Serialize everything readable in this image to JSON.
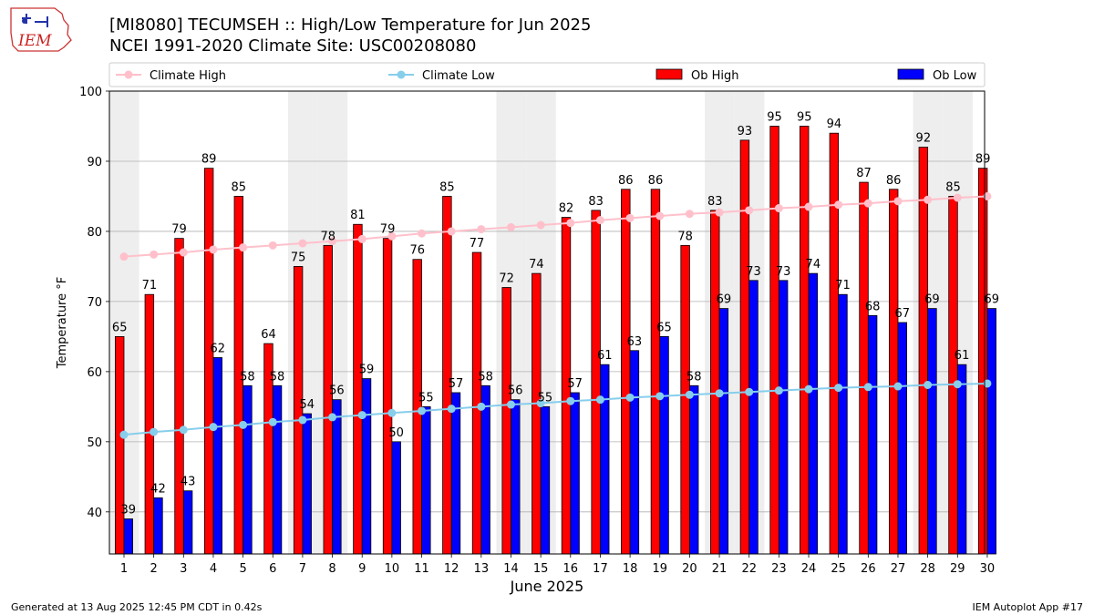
{
  "title": {
    "line1": "[MI8080] TECUMSEH :: High/Low Temperature for Jun 2025",
    "line2": "NCEI 1991-2020 Climate Site: USC00208080"
  },
  "logo_text": "IEM",
  "footer": {
    "left": "Generated at 13 Aug 2025 12:45 PM CDT in 0.42s",
    "right": "IEM Autoplot App #17"
  },
  "colors": {
    "ob_high": "#ff0000",
    "ob_low": "#0000ff",
    "climate_high": "#ffc0cb",
    "climate_low": "#87ceeb",
    "weekend_band": "#eeeeee",
    "grid": "#b0b0b0"
  },
  "chart_data": {
    "type": "bar",
    "xlabel": "June 2025",
    "ylabel": "Temperature °F",
    "ylim": [
      34,
      100
    ],
    "yticks": [
      40,
      50,
      60,
      70,
      80,
      90,
      100
    ],
    "grid": "horizontal",
    "legend_position": "top",
    "categories": [
      1,
      2,
      3,
      4,
      5,
      6,
      7,
      8,
      9,
      10,
      11,
      12,
      13,
      14,
      15,
      16,
      17,
      18,
      19,
      20,
      21,
      22,
      23,
      24,
      25,
      26,
      27,
      28,
      29,
      30
    ],
    "shaded_days": [
      1,
      7,
      8,
      14,
      15,
      21,
      22,
      28,
      29
    ],
    "series": [
      {
        "name": "Climate High",
        "type": "line",
        "values": [
          76.4,
          76.7,
          77.0,
          77.4,
          77.7,
          78.0,
          78.3,
          78.6,
          78.9,
          79.3,
          79.7,
          80.0,
          80.3,
          80.6,
          80.9,
          81.2,
          81.6,
          81.9,
          82.2,
          82.5,
          82.7,
          83.0,
          83.3,
          83.5,
          83.8,
          84.0,
          84.3,
          84.5,
          84.8,
          85.0
        ]
      },
      {
        "name": "Climate Low",
        "type": "line",
        "values": [
          51.0,
          51.4,
          51.7,
          52.1,
          52.4,
          52.8,
          53.1,
          53.5,
          53.8,
          54.1,
          54.4,
          54.7,
          55.0,
          55.3,
          55.5,
          55.8,
          56.0,
          56.3,
          56.5,
          56.7,
          56.9,
          57.1,
          57.3,
          57.5,
          57.7,
          57.8,
          57.9,
          58.1,
          58.2,
          58.3
        ]
      },
      {
        "name": "Ob High",
        "type": "bar",
        "values": [
          65,
          71,
          79,
          89,
          85,
          64,
          75,
          78,
          81,
          79,
          76,
          85,
          77,
          72,
          74,
          82,
          83,
          86,
          86,
          78,
          83,
          93,
          95,
          95,
          94,
          87,
          86,
          92,
          85,
          89
        ]
      },
      {
        "name": "Ob Low",
        "type": "bar",
        "values": [
          39,
          42,
          43,
          62,
          58,
          58,
          54,
          56,
          59,
          50,
          55,
          57,
          58,
          56,
          55,
          57,
          61,
          63,
          65,
          58,
          69,
          73,
          73,
          74,
          71,
          68,
          67,
          69,
          61,
          69
        ]
      }
    ]
  }
}
